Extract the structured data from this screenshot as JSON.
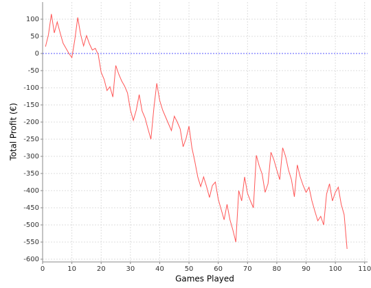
{
  "chart_data": {
    "type": "line",
    "xlabel": "Games Played",
    "ylabel": "Total Profit (€)",
    "x": [
      1,
      2,
      3,
      4,
      5,
      6,
      7,
      8,
      9,
      10,
      11,
      12,
      13,
      14,
      15,
      16,
      17,
      18,
      19,
      20,
      21,
      22,
      23,
      24,
      25,
      26,
      27,
      28,
      29,
      30,
      31,
      32,
      33,
      34,
      35,
      36,
      37,
      38,
      39,
      40,
      41,
      42,
      43,
      44,
      45,
      46,
      47,
      48,
      49,
      50,
      51,
      52,
      53,
      54,
      55,
      56,
      57,
      58,
      59,
      60,
      61,
      62,
      63,
      64,
      65,
      66,
      67,
      68,
      69,
      70,
      71,
      72,
      73,
      74,
      75,
      76,
      77,
      78,
      79,
      80,
      81,
      82,
      83,
      84,
      85,
      86,
      87,
      88,
      89,
      90,
      91,
      92,
      93,
      94,
      95,
      96,
      97,
      98,
      99,
      100,
      101,
      102,
      103,
      104
    ],
    "series": [
      {
        "color": "#ff5555",
        "values": [
          20,
          55,
          115,
          60,
          92,
          60,
          30,
          15,
          0,
          -12,
          40,
          105,
          55,
          22,
          52,
          28,
          10,
          15,
          -3,
          -55,
          -75,
          -108,
          -97,
          -127,
          -35,
          -60,
          -80,
          -95,
          -115,
          -165,
          -195,
          -165,
          -120,
          -168,
          -188,
          -220,
          -250,
          -160,
          -87,
          -137,
          -165,
          -185,
          -205,
          -225,
          -183,
          -200,
          -220,
          -272,
          -248,
          -212,
          -275,
          -315,
          -360,
          -388,
          -360,
          -388,
          -420,
          -385,
          -375,
          -425,
          -455,
          -485,
          -440,
          -485,
          -515,
          -550,
          -400,
          -430,
          -360,
          -408,
          -430,
          -450,
          -297,
          -328,
          -352,
          -405,
          -380,
          -288,
          -310,
          -340,
          -368,
          -275,
          -300,
          -340,
          -368,
          -418,
          -325,
          -360,
          -385,
          -405,
          -390,
          -430,
          -460,
          -488,
          -475,
          -500,
          -410,
          -380,
          -430,
          -405,
          -390,
          -440,
          -470,
          -570
        ]
      }
    ],
    "xlim": [
      0,
      111
    ],
    "ylim": [
      -608,
      150
    ],
    "xticks": [
      0,
      10,
      20,
      30,
      40,
      50,
      60,
      70,
      80,
      90,
      100,
      110
    ],
    "yticks": [
      -600,
      -550,
      -500,
      -450,
      -400,
      -350,
      -300,
      -250,
      -200,
      -150,
      -100,
      -50,
      0,
      50,
      100
    ],
    "reference_line": {
      "value": 0,
      "color": "#5555ff"
    },
    "grid": true
  }
}
